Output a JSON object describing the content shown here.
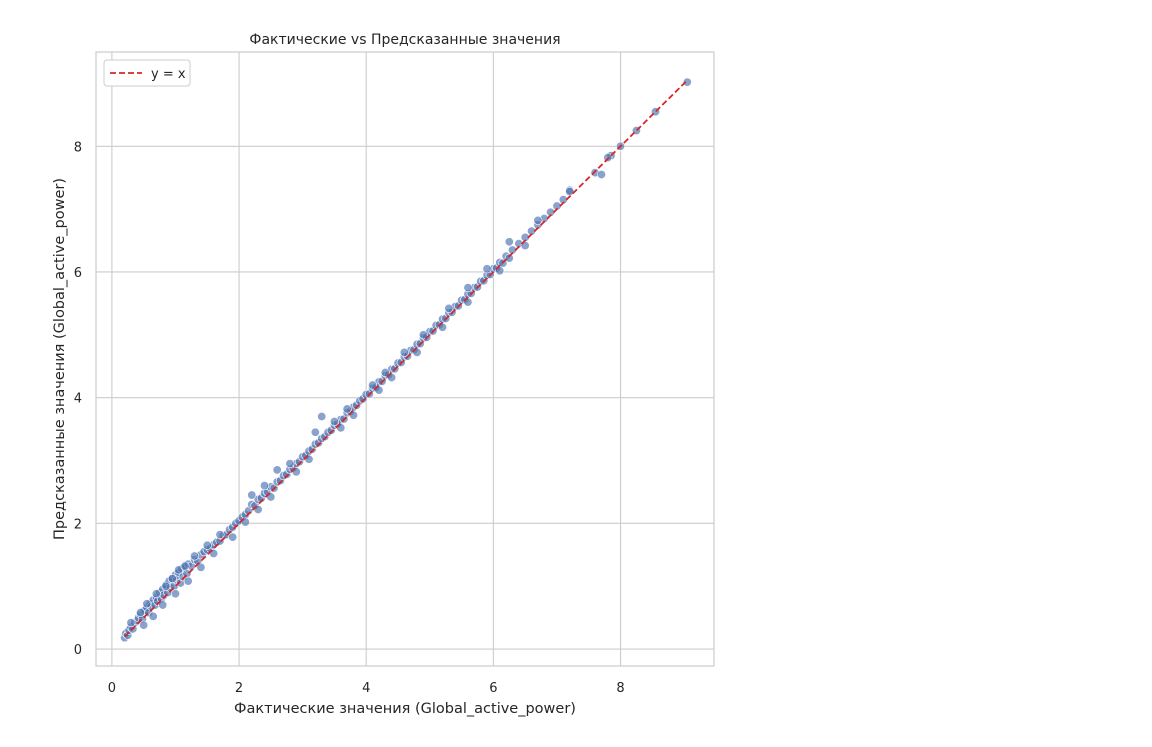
{
  "chart_data": {
    "type": "scatter",
    "title": "Фактические vs Предсказанные значения",
    "xlabel": "Фактические значения (Global_active_power)",
    "ylabel": "Предсказанные значения (Global_active_power)",
    "xlim": [
      -0.25,
      9.47
    ],
    "ylim": [
      -0.27,
      9.5
    ],
    "xticks": [
      0,
      2,
      4,
      6,
      8
    ],
    "yticks": [
      0,
      2,
      4,
      6,
      8
    ],
    "xtick_labels": [
      "0",
      "2",
      "4",
      "6",
      "8"
    ],
    "ytick_labels": [
      "0",
      "2",
      "4",
      "6",
      "8"
    ],
    "grid": true,
    "legend": {
      "placement": "top-left",
      "entries": [
        {
          "label": "y = x",
          "style": "dashed-line",
          "color": "#d62728"
        }
      ]
    },
    "reference_line": {
      "label": "y = x",
      "x": [
        0.2,
        9.05
      ],
      "y": [
        0.2,
        9.05
      ]
    },
    "series": [
      {
        "marker_color": "#4c72b0",
        "x": [
          0.2,
          0.22,
          0.25,
          0.27,
          0.3,
          0.33,
          0.36,
          0.4,
          0.42,
          0.45,
          0.48,
          0.5,
          0.52,
          0.55,
          0.58,
          0.6,
          0.62,
          0.65,
          0.68,
          0.7,
          0.72,
          0.75,
          0.78,
          0.8,
          0.82,
          0.85,
          0.88,
          0.9,
          0.92,
          0.95,
          0.98,
          1.0,
          1.02,
          1.05,
          1.08,
          1.1,
          1.12,
          1.15,
          1.18,
          1.2,
          1.25,
          1.3,
          1.35,
          1.4,
          1.45,
          1.5,
          1.55,
          1.6,
          1.65,
          1.7,
          1.75,
          1.8,
          1.85,
          1.9,
          1.95,
          2.0,
          2.05,
          2.1,
          2.15,
          2.2,
          2.25,
          2.3,
          2.35,
          2.4,
          2.45,
          2.5,
          2.55,
          2.6,
          2.65,
          2.7,
          2.75,
          2.8,
          2.85,
          2.9,
          2.95,
          3.0,
          3.05,
          3.1,
          3.15,
          3.2,
          3.25,
          3.3,
          3.35,
          3.4,
          3.45,
          3.5,
          3.55,
          3.6,
          3.65,
          3.7,
          3.75,
          3.8,
          3.85,
          3.9,
          3.95,
          4.0,
          4.05,
          4.1,
          4.15,
          4.2,
          4.25,
          4.3,
          4.35,
          4.4,
          4.45,
          4.5,
          4.55,
          4.6,
          4.65,
          4.7,
          4.75,
          4.8,
          4.85,
          4.9,
          4.95,
          5.0,
          5.05,
          5.1,
          5.15,
          5.2,
          5.25,
          5.3,
          5.35,
          5.4,
          5.45,
          5.5,
          5.55,
          5.6,
          5.65,
          5.7,
          5.75,
          5.8,
          5.85,
          5.9,
          5.95,
          6.0,
          6.05,
          6.1,
          6.15,
          6.2,
          6.25,
          6.3,
          6.4,
          6.5,
          6.6,
          6.7,
          6.8,
          6.9,
          7.0,
          7.1,
          7.2,
          7.6,
          7.7,
          7.85,
          8.0,
          8.25,
          8.55,
          9.05,
          0.3,
          0.45,
          0.55,
          0.7,
          0.85,
          0.95,
          1.05,
          1.15,
          1.3,
          1.5,
          1.7,
          2.2,
          2.4,
          2.6,
          2.8,
          3.2,
          3.3,
          3.5,
          3.7,
          4.1,
          4.3,
          4.6,
          4.9,
          5.3,
          5.6,
          5.9,
          6.25,
          6.7,
          7.2,
          0.5,
          0.65,
          0.8,
          1.0,
          1.2,
          1.4,
          1.6,
          1.9,
          2.1,
          2.3,
          2.5,
          2.9,
          3.1,
          3.6,
          3.8,
          4.2,
          4.4,
          4.8,
          5.2,
          5.6,
          6.1,
          6.5,
          7.8
        ],
        "y": [
          0.18,
          0.25,
          0.22,
          0.3,
          0.35,
          0.32,
          0.42,
          0.45,
          0.5,
          0.55,
          0.48,
          0.6,
          0.62,
          0.66,
          0.58,
          0.72,
          0.68,
          0.78,
          0.7,
          0.82,
          0.76,
          0.9,
          0.8,
          0.95,
          0.86,
          1.02,
          0.9,
          1.08,
          0.98,
          1.12,
          1.0,
          1.18,
          1.1,
          1.22,
          1.05,
          1.28,
          1.15,
          1.3,
          1.2,
          1.35,
          1.32,
          1.42,
          1.4,
          1.5,
          1.55,
          1.58,
          1.6,
          1.66,
          1.7,
          1.72,
          1.8,
          1.82,
          1.9,
          1.94,
          2.0,
          2.04,
          2.1,
          2.14,
          2.2,
          2.3,
          2.28,
          2.38,
          2.4,
          2.48,
          2.5,
          2.58,
          2.56,
          2.66,
          2.68,
          2.76,
          2.78,
          2.86,
          2.88,
          2.95,
          2.98,
          3.06,
          3.08,
          3.15,
          3.18,
          3.26,
          3.28,
          3.35,
          3.38,
          3.45,
          3.48,
          3.56,
          3.58,
          3.65,
          3.66,
          3.76,
          3.78,
          3.85,
          3.88,
          3.95,
          3.98,
          4.05,
          4.06,
          4.15,
          4.16,
          4.25,
          4.26,
          4.35,
          4.36,
          4.45,
          4.46,
          4.55,
          4.56,
          4.65,
          4.66,
          4.75,
          4.76,
          4.85,
          4.86,
          4.95,
          4.96,
          5.05,
          5.06,
          5.15,
          5.16,
          5.25,
          5.26,
          5.35,
          5.36,
          5.45,
          5.46,
          5.55,
          5.56,
          5.65,
          5.66,
          5.75,
          5.76,
          5.85,
          5.86,
          5.95,
          5.96,
          6.05,
          6.06,
          6.15,
          6.14,
          6.25,
          6.22,
          6.35,
          6.45,
          6.55,
          6.65,
          6.75,
          6.85,
          6.95,
          7.05,
          7.15,
          7.3,
          7.58,
          7.55,
          7.85,
          8.0,
          8.25,
          8.55,
          9.02,
          0.42,
          0.58,
          0.72,
          0.88,
          1.0,
          1.12,
          1.26,
          1.32,
          1.48,
          1.65,
          1.82,
          2.45,
          2.6,
          2.85,
          2.95,
          3.45,
          3.7,
          3.62,
          3.82,
          4.2,
          4.4,
          4.72,
          5.0,
          5.42,
          5.75,
          6.05,
          6.48,
          6.82,
          7.28,
          0.38,
          0.52,
          0.7,
          0.88,
          1.08,
          1.3,
          1.52,
          1.78,
          2.02,
          2.22,
          2.42,
          2.82,
          3.02,
          3.52,
          3.72,
          4.12,
          4.32,
          4.72,
          5.12,
          5.52,
          6.02,
          6.42,
          7.82
        ]
      }
    ]
  }
}
